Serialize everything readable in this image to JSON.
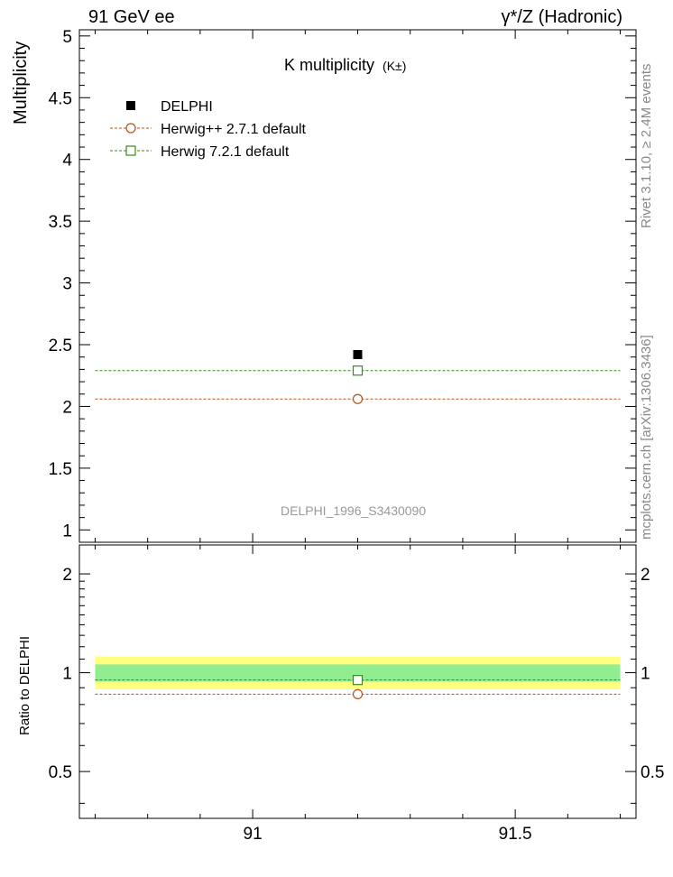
{
  "header": {
    "left": "91 GeV ee",
    "right": "γ*/Z (Hadronic)"
  },
  "side": {
    "rivet": "Rivet 3.1.10, ≥ 2.4M events",
    "site": "mcplots.cern.ch [arXiv:1306.3436]"
  },
  "chart_data": [
    {
      "type": "scatter",
      "title": "K multiplicity",
      "title_sub": "(K±)",
      "ylabel": "Multiplicity",
      "watermark": "DELPHI_1996_S3430090",
      "xlim": [
        90.67,
        91.73
      ],
      "ylim": [
        0.9,
        5.05
      ],
      "x_ticks": [
        91,
        91.5
      ],
      "y_ticks": [
        1,
        1.5,
        2,
        2.5,
        3,
        3.5,
        4,
        4.5,
        5
      ],
      "y_tick_labels": [
        "1",
        "1.5",
        "2",
        "2.5",
        "3",
        "3.5",
        "4",
        "4.5",
        "5"
      ],
      "legend_position": "top-left",
      "series": [
        {
          "name": "DELPHI",
          "marker": "filled-square",
          "color": "#000000",
          "x": [
            91.2
          ],
          "y": [
            2.42
          ]
        },
        {
          "name": "Herwig++ 2.7.1 default",
          "marker": "open-circle",
          "color": "#b5521a",
          "line": "dashed",
          "x_range": [
            90.7,
            91.7
          ],
          "x": [
            91.2
          ],
          "y": [
            2.06
          ]
        },
        {
          "name": "Herwig 7.2.1 default",
          "marker": "open-square",
          "color": "#3a8a1a",
          "line": "dashed",
          "x_range": [
            90.7,
            91.7
          ],
          "x": [
            91.2
          ],
          "y": [
            2.29
          ]
        }
      ]
    },
    {
      "type": "scatter",
      "ylabel": "Ratio to DELPHI",
      "xlim": [
        90.67,
        91.73
      ],
      "ylim": [
        0.36,
        2.45
      ],
      "log_y": true,
      "x_ticks": [
        91,
        91.5
      ],
      "x_tick_labels": [
        "91",
        "91.5"
      ],
      "y_ticks": [
        0.5,
        1,
        2
      ],
      "y_tick_labels": [
        "0.5",
        "1",
        "2"
      ],
      "bands": [
        {
          "color": "#ffff80",
          "lo": 0.89,
          "hi": 1.12
        },
        {
          "color": "#90ee90",
          "lo": 0.94,
          "hi": 1.06
        }
      ],
      "series": [
        {
          "name": "Herwig++ 2.7.1 default",
          "color": "#b5521a",
          "x": [
            91.2
          ],
          "y": [
            0.86
          ]
        },
        {
          "name": "Herwig 7.2.1 default",
          "color": "#3a8a1a",
          "x": [
            91.2
          ],
          "y": [
            0.95
          ]
        }
      ]
    }
  ]
}
